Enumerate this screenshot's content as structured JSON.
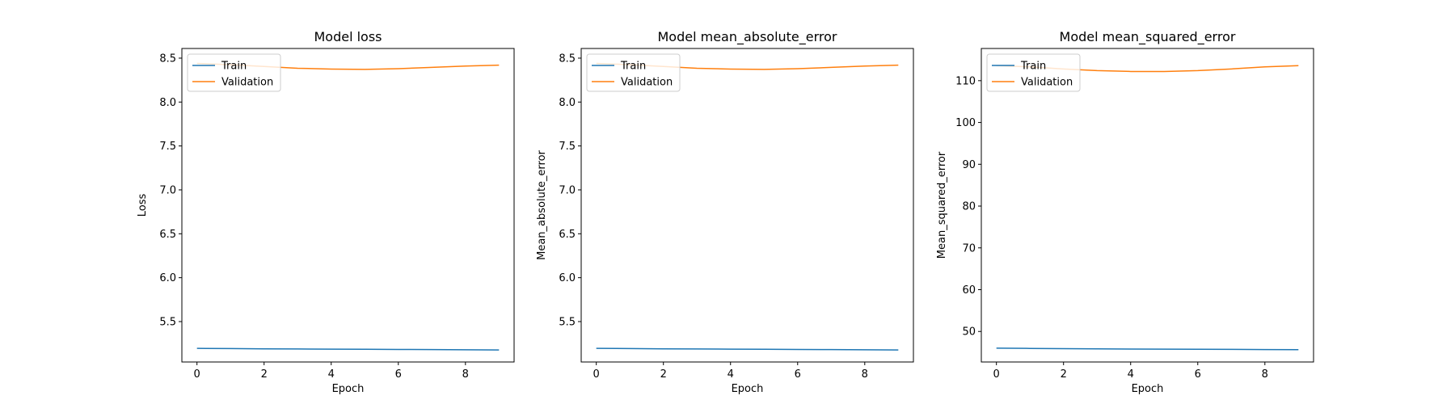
{
  "colors": {
    "train": "#1f77b4",
    "validation": "#ff7f0e"
  },
  "chart_data": [
    {
      "type": "line",
      "title": "Model loss",
      "xlabel": "Epoch",
      "ylabel": "Loss",
      "xlim": [
        -0.45,
        9.45
      ],
      "ylim": [
        5.04,
        8.61
      ],
      "xticks": [
        0,
        2,
        4,
        6,
        8
      ],
      "yticks": [
        5.5,
        6.0,
        6.5,
        7.0,
        7.5,
        8.0,
        8.5
      ],
      "ytick_labels": [
        "5.5",
        "6.0",
        "6.5",
        "7.0",
        "7.5",
        "8.0",
        "8.5"
      ],
      "legend": "upper left",
      "grid": false,
      "x": [
        0,
        1,
        2,
        3,
        4,
        5,
        6,
        7,
        8,
        9
      ],
      "series": [
        {
          "name": "Train",
          "values": [
            5.195,
            5.193,
            5.19,
            5.188,
            5.186,
            5.185,
            5.183,
            5.181,
            5.179,
            5.177
          ]
        },
        {
          "name": "Validation",
          "values": [
            8.44,
            8.425,
            8.405,
            8.385,
            8.375,
            8.372,
            8.38,
            8.395,
            8.41,
            8.42
          ]
        }
      ]
    },
    {
      "type": "line",
      "title": "Model mean_absolute_error",
      "xlabel": "Epoch",
      "ylabel": "Mean_absolute_error",
      "xlim": [
        -0.45,
        9.45
      ],
      "ylim": [
        5.04,
        8.61
      ],
      "xticks": [
        0,
        2,
        4,
        6,
        8
      ],
      "yticks": [
        5.5,
        6.0,
        6.5,
        7.0,
        7.5,
        8.0,
        8.5
      ],
      "ytick_labels": [
        "5.5",
        "6.0",
        "6.5",
        "7.0",
        "7.5",
        "8.0",
        "8.5"
      ],
      "legend": "upper left",
      "grid": false,
      "x": [
        0,
        1,
        2,
        3,
        4,
        5,
        6,
        7,
        8,
        9
      ],
      "series": [
        {
          "name": "Train",
          "values": [
            5.195,
            5.193,
            5.19,
            5.188,
            5.186,
            5.185,
            5.183,
            5.181,
            5.179,
            5.177
          ]
        },
        {
          "name": "Validation",
          "values": [
            8.44,
            8.425,
            8.405,
            8.385,
            8.375,
            8.372,
            8.38,
            8.395,
            8.41,
            8.42
          ]
        }
      ]
    },
    {
      "type": "line",
      "title": "Model mean_squared_error",
      "xlabel": "Epoch",
      "ylabel": "Mean_squared_error",
      "xlim": [
        -0.45,
        9.45
      ],
      "ylim": [
        42.7,
        117.7
      ],
      "xticks": [
        0,
        2,
        4,
        6,
        8
      ],
      "yticks": [
        50,
        60,
        70,
        80,
        90,
        100,
        110
      ],
      "ytick_labels": [
        "50",
        "60",
        "70",
        "80",
        "90",
        "100",
        "110"
      ],
      "legend": "upper left",
      "grid": false,
      "x": [
        0,
        1,
        2,
        3,
        4,
        5,
        6,
        7,
        8,
        9
      ],
      "series": [
        {
          "name": "Train",
          "values": [
            46.0,
            45.95,
            45.9,
            45.85,
            45.8,
            45.77,
            45.74,
            45.71,
            45.68,
            45.65
          ]
        },
        {
          "name": "Validation",
          "values": [
            113.6,
            113.3,
            112.8,
            112.4,
            112.2,
            112.2,
            112.4,
            112.8,
            113.3,
            113.6
          ]
        }
      ]
    }
  ]
}
